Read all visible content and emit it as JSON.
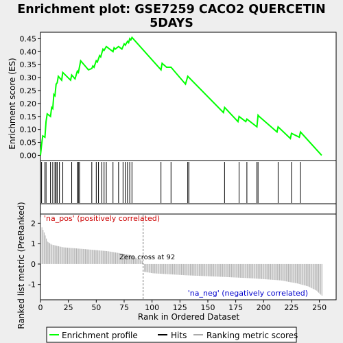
{
  "chart_data": {
    "type": "line",
    "title_line1": "Enrichment plot: GSE7259 CACO2 QUERCETIN",
    "title_line2": "5DAYS",
    "xlabel": "Rank in Ordered Dataset",
    "x_ticks": [
      0,
      25,
      50,
      75,
      100,
      125,
      150,
      175,
      200,
      225,
      250
    ],
    "xlim": [
      0,
      265
    ],
    "es_panel": {
      "ylabel": "Enrichment score (ES)",
      "ylim": [
        -0.02,
        0.475
      ],
      "y_ticks": [
        0.0,
        0.05,
        0.1,
        0.15,
        0.2,
        0.25,
        0.3,
        0.35,
        0.4,
        0.45
      ],
      "y_tick_labels": [
        "0.00",
        "0.05",
        "0.10",
        "0.15",
        "0.20",
        "0.25",
        "0.30",
        "0.35",
        "0.40",
        "0.45"
      ],
      "series_name": "Enrichment profile",
      "color": "#00ff00",
      "points": [
        [
          0,
          0.0
        ],
        [
          1,
          0.04
        ],
        [
          2,
          0.075
        ],
        [
          4,
          0.07
        ],
        [
          5,
          0.13
        ],
        [
          6,
          0.16
        ],
        [
          9,
          0.15
        ],
        [
          10,
          0.185
        ],
        [
          11,
          0.18
        ],
        [
          12,
          0.235
        ],
        [
          13,
          0.23
        ],
        [
          14,
          0.275
        ],
        [
          15,
          0.28
        ],
        [
          16,
          0.305
        ],
        [
          17,
          0.3
        ],
        [
          19,
          0.29
        ],
        [
          20,
          0.32
        ],
        [
          27,
          0.29
        ],
        [
          28,
          0.31
        ],
        [
          31,
          0.295
        ],
        [
          33,
          0.325
        ],
        [
          34,
          0.32
        ],
        [
          36,
          0.365
        ],
        [
          43,
          0.33
        ],
        [
          46,
          0.335
        ],
        [
          47,
          0.345
        ],
        [
          48,
          0.34
        ],
        [
          50,
          0.365
        ],
        [
          51,
          0.36
        ],
        [
          53,
          0.385
        ],
        [
          54,
          0.38
        ],
        [
          56,
          0.41
        ],
        [
          57,
          0.405
        ],
        [
          59,
          0.42
        ],
        [
          65,
          0.4
        ],
        [
          66,
          0.415
        ],
        [
          67,
          0.41
        ],
        [
          70,
          0.42
        ],
        [
          73,
          0.41
        ],
        [
          75,
          0.43
        ],
        [
          76,
          0.425
        ],
        [
          78,
          0.44
        ],
        [
          79,
          0.435
        ],
        [
          80,
          0.45
        ],
        [
          81,
          0.445
        ],
        [
          82,
          0.455
        ],
        [
          108,
          0.33
        ],
        [
          109,
          0.355
        ],
        [
          113,
          0.34
        ],
        [
          117,
          0.34
        ],
        [
          130,
          0.275
        ],
        [
          132,
          0.305
        ],
        [
          164,
          0.165
        ],
        [
          165,
          0.185
        ],
        [
          177,
          0.13
        ],
        [
          178,
          0.15
        ],
        [
          184,
          0.13
        ],
        [
          185,
          0.14
        ],
        [
          194,
          0.11
        ],
        [
          195,
          0.155
        ],
        [
          196,
          0.15
        ],
        [
          212,
          0.09
        ],
        [
          213,
          0.11
        ],
        [
          224,
          0.065
        ],
        [
          225,
          0.085
        ],
        [
          232,
          0.07
        ],
        [
          233,
          0.09
        ],
        [
          252,
          0.0
        ]
      ]
    },
    "hits_panel": {
      "legend_label": "Hits",
      "hit_ranks": [
        1,
        4,
        5,
        9,
        11,
        13,
        14,
        15,
        17,
        20,
        28,
        33,
        34,
        35,
        46,
        50,
        52,
        55,
        57,
        59,
        65,
        70,
        74,
        76,
        78,
        80,
        82,
        108,
        117,
        132,
        133,
        165,
        178,
        185,
        194,
        195,
        213,
        225,
        233
      ]
    },
    "metric_panel": {
      "ylabel": "Ranked list metric (PreRanked)",
      "ylim": [
        -1.75,
        2.45
      ],
      "y_ticks": [
        -1,
        0,
        1,
        2
      ],
      "legend_label": "Ranking metric scores",
      "pos_label": "'na_pos' (positively correlated)",
      "neg_label": "'na_neg' (negatively correlated)",
      "zero_cross_label": "Zero cross at 92",
      "zero_cross": 92,
      "n_ranks": 253,
      "curve_anchors": [
        [
          0,
          2.3
        ],
        [
          1,
          1.8
        ],
        [
          3,
          1.55
        ],
        [
          6,
          1.1
        ],
        [
          10,
          0.95
        ],
        [
          20,
          0.82
        ],
        [
          40,
          0.73
        ],
        [
          60,
          0.63
        ],
        [
          80,
          0.45
        ],
        [
          91,
          0.15
        ],
        [
          92,
          0.02
        ],
        [
          93,
          -0.38
        ],
        [
          100,
          -0.45
        ],
        [
          130,
          -0.55
        ],
        [
          160,
          -0.62
        ],
        [
          190,
          -0.7
        ],
        [
          215,
          -0.8
        ],
        [
          230,
          -0.95
        ],
        [
          240,
          -1.1
        ],
        [
          247,
          -1.3
        ],
        [
          252,
          -1.55
        ]
      ]
    },
    "legend": {
      "items": [
        "Enrichment profile",
        "Hits",
        "Ranking metric scores"
      ],
      "colors": [
        "#00ff00",
        "#000000",
        "#aaaaaa"
      ]
    }
  }
}
